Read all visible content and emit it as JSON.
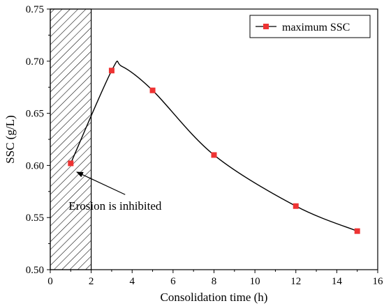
{
  "chart_data": {
    "type": "line",
    "xlabel": "Consolidation time (h)",
    "ylabel": "SSC (g/L)",
    "xlim": [
      0,
      16
    ],
    "ylim": [
      0.5,
      0.75
    ],
    "xticks": [
      "0",
      "2",
      "4",
      "6",
      "8",
      "10",
      "12",
      "14",
      "16"
    ],
    "yticks": [
      "0.50",
      "0.55",
      "0.60",
      "0.65",
      "0.70",
      "0.75"
    ],
    "grid": false,
    "legend_position": "top-right",
    "series": [
      {
        "name": "maximum SSC",
        "color": "#ee3333",
        "line_color": "#000000",
        "marker": "square",
        "x": [
          1,
          3,
          5,
          8,
          12,
          15
        ],
        "y": [
          0.602,
          0.691,
          0.672,
          0.61,
          0.561,
          0.537
        ]
      }
    ],
    "curve_peak": {
      "x": 3.5,
      "y": 0.695
    },
    "shaded_region": {
      "x_start": 0,
      "x_end": 2,
      "pattern": "diagonal-hatch"
    },
    "annotation": {
      "text": "Erosion is inhibited",
      "point_x": 1.5,
      "point_y": 0.591,
      "text_x": 4,
      "text_y": 0.562
    }
  }
}
